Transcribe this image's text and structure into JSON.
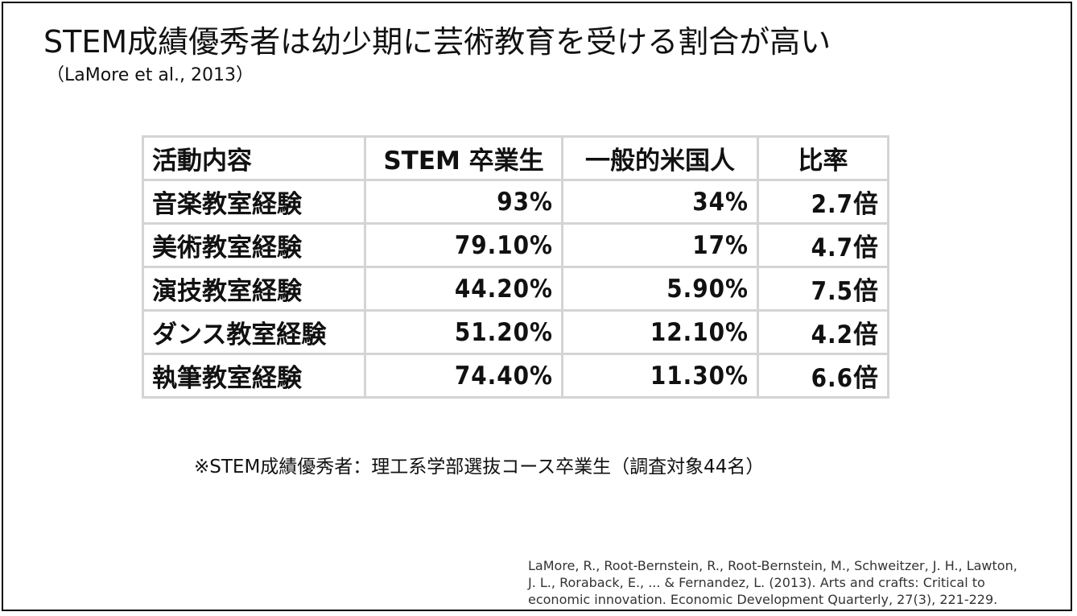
{
  "slide": {
    "title": "STEM成績優秀者は幼少期に芸術教育を受ける割合が高い",
    "subtitle": "（LaMore et al., 2013）"
  },
  "table": {
    "headers": [
      "活動内容",
      "STEM 卒業生",
      "一般的米国人",
      "比率"
    ],
    "rows": [
      [
        "音楽教室経験",
        "93%",
        "34%",
        "2.7倍"
      ],
      [
        "美術教室経験",
        "79.10%",
        "17%",
        "4.7倍"
      ],
      [
        "演技教室経験",
        "44.20%",
        "5.90%",
        "7.5倍"
      ],
      [
        "ダンス教室経験",
        "51.20%",
        "12.10%",
        "4.2倍"
      ],
      [
        "執筆教室経験",
        "74.40%",
        "11.30%",
        "6.6倍"
      ]
    ]
  },
  "note": "※STEM成績優秀者：理工系学部選抜コース卒業生（調査対象44名）",
  "reference": {
    "line1": "LaMore, R., Root-Bernstein, R., Root-Bernstein, M., Schweitzer, J. H., Lawton,",
    "line2": "J. L., Roraback, E., ... & Fernandez, L. (2013). Arts and crafts: Critical to",
    "line3": "economic innovation. Economic Development Quarterly, 27(3), 221-229."
  }
}
